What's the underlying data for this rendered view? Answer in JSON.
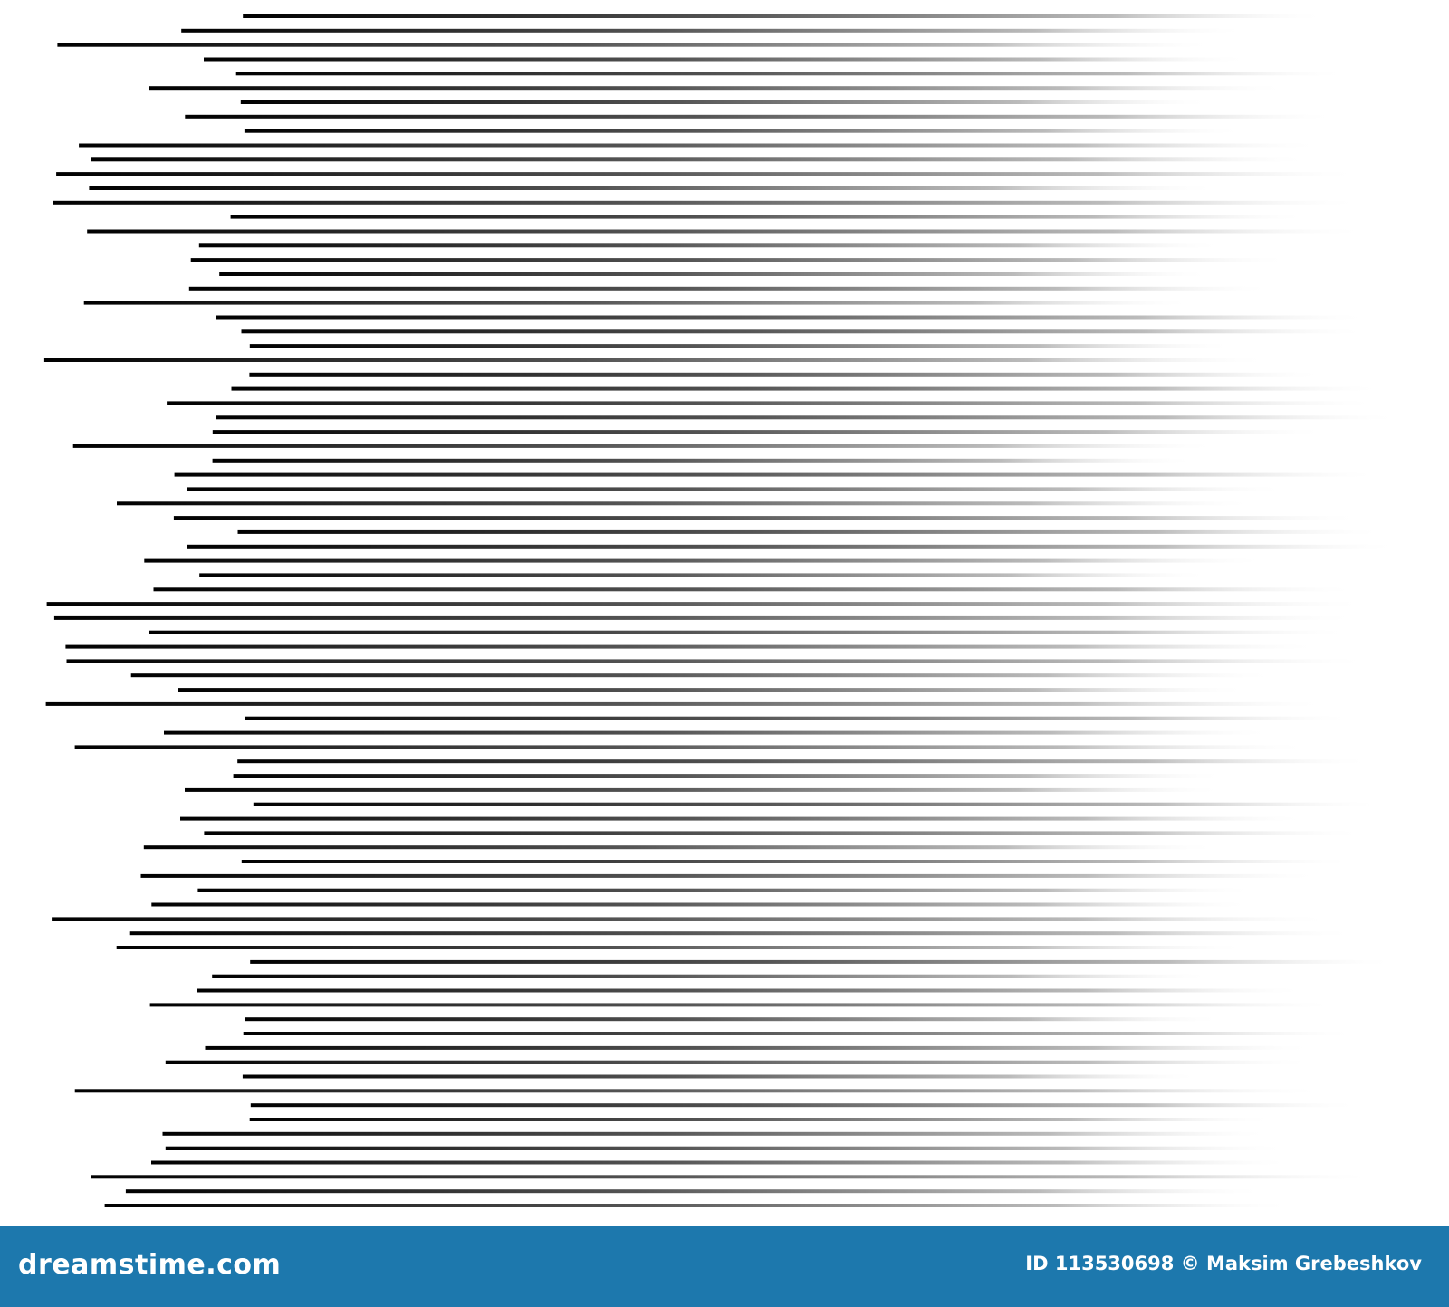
{
  "footer": {
    "logo": "dreamstime.com",
    "credit": "ID 113530698 © Maksim Grebeshkov"
  }
}
